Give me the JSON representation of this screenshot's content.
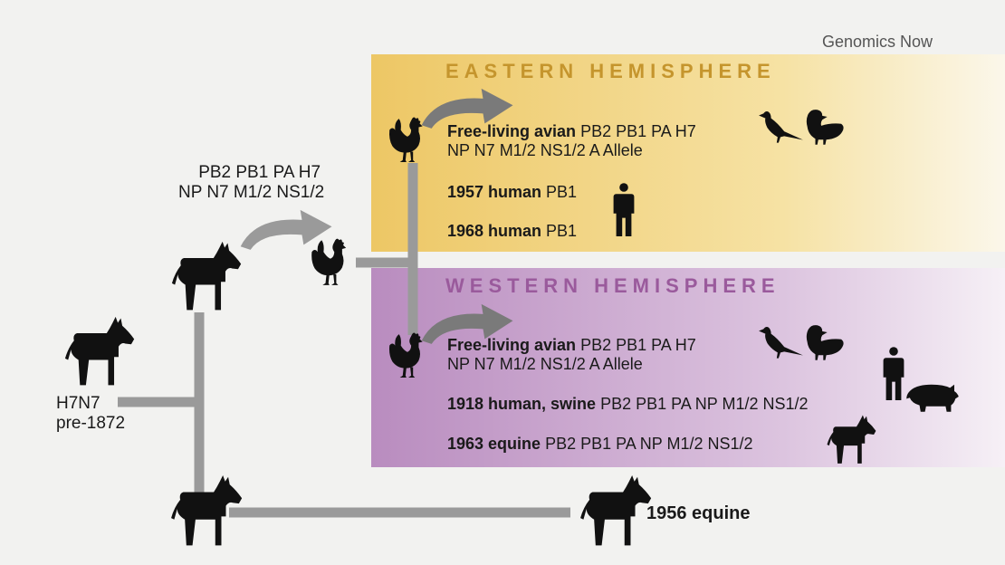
{
  "brand": "Genomics Now",
  "root": {
    "subtype": "H7N7",
    "era": "pre-1872"
  },
  "transfer_genes": {
    "line1": "PB2 PB1 PA H7",
    "line2": "NP N7 M1/2 NS1/2"
  },
  "eastern": {
    "title": "EASTERN HEMISPHERE",
    "avian": {
      "bold": "Free-living avian",
      "line1": " PB2 PB1 PA H7",
      "line2": "NP N7 M1/2 NS1/2 A Allele"
    },
    "h1957": {
      "bold": "1957 human",
      "genes": " PB1"
    },
    "h1968": {
      "bold": "1968 human",
      "genes": " PB1"
    }
  },
  "western": {
    "title": "WESTERN HEMISPHERE",
    "avian": {
      "bold": "Free-living avian",
      "line1": " PB2 PB1 PA H7",
      "line2": "NP N7 M1/2 NS1/2 A Allele"
    },
    "h1918": {
      "bold": "1918 human, swine",
      "genes": " PB2 PB1 PA NP M1/2 NS1/2"
    },
    "e1963": {
      "bold": "1963 equine",
      "genes": " PB2 PB1 PA NP M1/2 NS1/2"
    }
  },
  "equine1956": "1956 equine",
  "colors": {
    "east_band": "#edc765",
    "west_band": "#b98cbf",
    "line": "#9a9a9a",
    "silhouette": "#111111"
  },
  "icons": [
    "horse-icon",
    "rooster-icon",
    "bird-icon",
    "duck-icon",
    "human-icon",
    "pig-icon",
    "arrow-icon"
  ]
}
